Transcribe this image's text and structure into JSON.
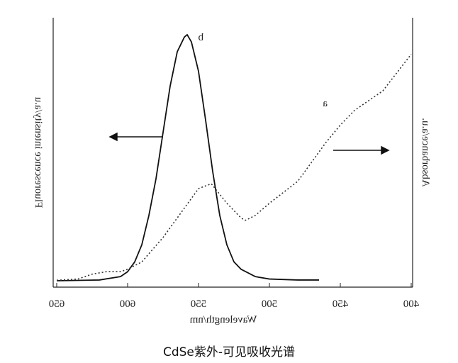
{
  "chart_data": {
    "type": "line",
    "x_label": "Wavelength/nm",
    "y_label": "Fluorescence intensity/a.u",
    "y2_label": "Absorbance/a.u.",
    "caption": "CdSe紫外-可见吸收光谱",
    "xlim": [
      400,
      650
    ],
    "xticks": [
      400,
      450,
      500,
      550,
      600,
      650
    ],
    "ylim": [
      0,
      1.03
    ],
    "mirrored": true,
    "series": [
      {
        "name": "b",
        "color": "#111111",
        "dash": false,
        "x": [
          650,
          620,
          605,
          600,
          595,
          590,
          585,
          580,
          575,
          570,
          565,
          560,
          558,
          555,
          550,
          545,
          540,
          535,
          530,
          525,
          520,
          510,
          500,
          480,
          465
        ],
        "values": [
          0.003,
          0.006,
          0.02,
          0.04,
          0.08,
          0.15,
          0.27,
          0.42,
          0.61,
          0.8,
          0.94,
          1.0,
          1.01,
          0.98,
          0.86,
          0.66,
          0.45,
          0.27,
          0.15,
          0.08,
          0.05,
          0.02,
          0.01,
          0.006,
          0.006
        ]
      },
      {
        "name": "a",
        "color": "#333333",
        "dash": true,
        "x": [
          650,
          635,
          625,
          615,
          605,
          600,
          590,
          575,
          560,
          550,
          541,
          530,
          520,
          517,
          510,
          500,
          480,
          460,
          450,
          440,
          420,
          400
        ],
        "values": [
          0.005,
          0.01,
          0.03,
          0.04,
          0.04,
          0.05,
          0.08,
          0.18,
          0.3,
          0.38,
          0.4,
          0.32,
          0.26,
          0.25,
          0.27,
          0.32,
          0.41,
          0.57,
          0.64,
          0.7,
          0.78,
          0.93
        ]
      }
    ]
  }
}
